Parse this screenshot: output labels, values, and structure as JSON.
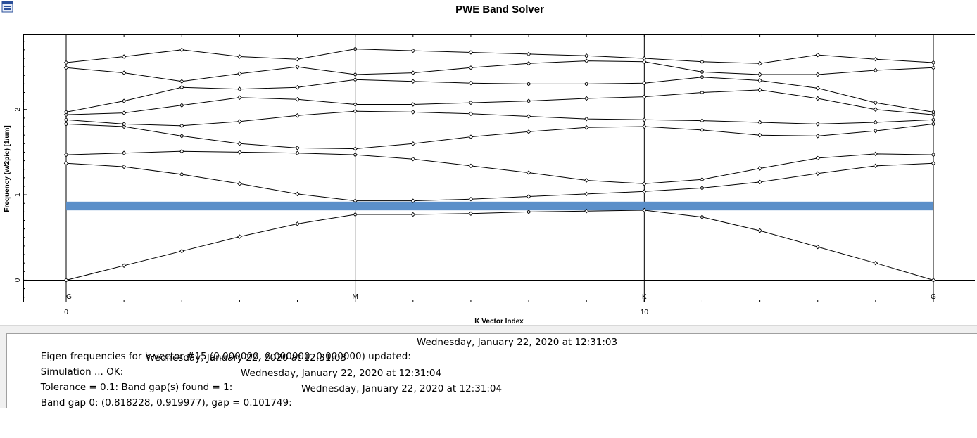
{
  "window": {
    "icon": "window-icon"
  },
  "chart_data": {
    "type": "line",
    "title": "PWE Band Solver",
    "xlabel": "K Vector Index",
    "ylabel": "Frequency (w/2pic) [1/um]",
    "xlim": [
      0,
      15
    ],
    "ylim": [
      -0.26,
      2.88
    ],
    "x_ticks": [
      0,
      10
    ],
    "y_ticks": [
      0,
      1,
      2
    ],
    "grid": "vertical lines at high-symmetry points",
    "k_points": [
      {
        "label": "G",
        "x": 0
      },
      {
        "label": "M",
        "x": 5
      },
      {
        "label": "K",
        "x": 10
      },
      {
        "label": "G",
        "x": 15
      }
    ],
    "x": [
      0,
      1,
      2,
      3,
      4,
      5,
      6,
      7,
      8,
      9,
      10,
      11,
      12,
      13,
      14,
      15
    ],
    "series": [
      {
        "values": [
          0.0,
          0.17,
          0.34,
          0.51,
          0.66,
          0.77,
          0.77,
          0.78,
          0.8,
          0.81,
          0.82,
          0.74,
          0.58,
          0.39,
          0.2,
          0.0
        ]
      },
      {
        "values": [
          1.37,
          1.33,
          1.24,
          1.13,
          1.01,
          0.93,
          0.93,
          0.95,
          0.98,
          1.01,
          1.04,
          1.08,
          1.15,
          1.25,
          1.34,
          1.37
        ]
      },
      {
        "values": [
          1.47,
          1.49,
          1.51,
          1.5,
          1.49,
          1.47,
          1.42,
          1.34,
          1.26,
          1.17,
          1.13,
          1.18,
          1.31,
          1.43,
          1.48,
          1.47
        ]
      },
      {
        "values": [
          1.83,
          1.8,
          1.69,
          1.6,
          1.55,
          1.54,
          1.6,
          1.68,
          1.74,
          1.79,
          1.8,
          1.76,
          1.7,
          1.69,
          1.75,
          1.83
        ]
      },
      {
        "values": [
          1.88,
          1.83,
          1.81,
          1.86,
          1.93,
          1.98,
          1.97,
          1.95,
          1.92,
          1.89,
          1.88,
          1.87,
          1.85,
          1.83,
          1.85,
          1.88
        ]
      },
      {
        "values": [
          1.94,
          1.96,
          2.05,
          2.14,
          2.12,
          2.06,
          2.06,
          2.08,
          2.1,
          2.13,
          2.15,
          2.2,
          2.23,
          2.13,
          2.0,
          1.94
        ]
      },
      {
        "values": [
          1.97,
          2.1,
          2.26,
          2.24,
          2.26,
          2.35,
          2.33,
          2.31,
          2.3,
          2.3,
          2.31,
          2.38,
          2.34,
          2.25,
          2.08,
          1.97
        ]
      },
      {
        "values": [
          2.49,
          2.43,
          2.33,
          2.42,
          2.5,
          2.41,
          2.43,
          2.49,
          2.54,
          2.57,
          2.56,
          2.44,
          2.41,
          2.41,
          2.46,
          2.49
        ]
      },
      {
        "values": [
          2.55,
          2.62,
          2.7,
          2.62,
          2.59,
          2.71,
          2.69,
          2.67,
          2.65,
          2.63,
          2.6,
          2.56,
          2.54,
          2.64,
          2.59,
          2.55
        ]
      }
    ],
    "band_gap": {
      "lower": 0.818228,
      "upper": 0.919977,
      "color": "#5b8fc9"
    },
    "line_color": "#000000"
  },
  "log": {
    "lines": [
      {
        "text": "Eigen frequencies for k-vector #15 (0.000000, 0.000000, 0.000000) updated:",
        "time": "Wednesday, January 22, 2020 at 12:31:03"
      },
      {
        "text": "Simulation ... OK:",
        "time": "Wednesday, January 22, 2020 at 12:31:03"
      },
      {
        "text": "Tolerance = 0.1: Band gap(s) found = 1:",
        "time": "Wednesday, January 22, 2020 at 12:31:04"
      },
      {
        "text": "Band gap 0: (0.818228, 0.919977), gap = 0.101749:",
        "time": "Wednesday, January 22, 2020 at 12:31:04"
      }
    ]
  }
}
